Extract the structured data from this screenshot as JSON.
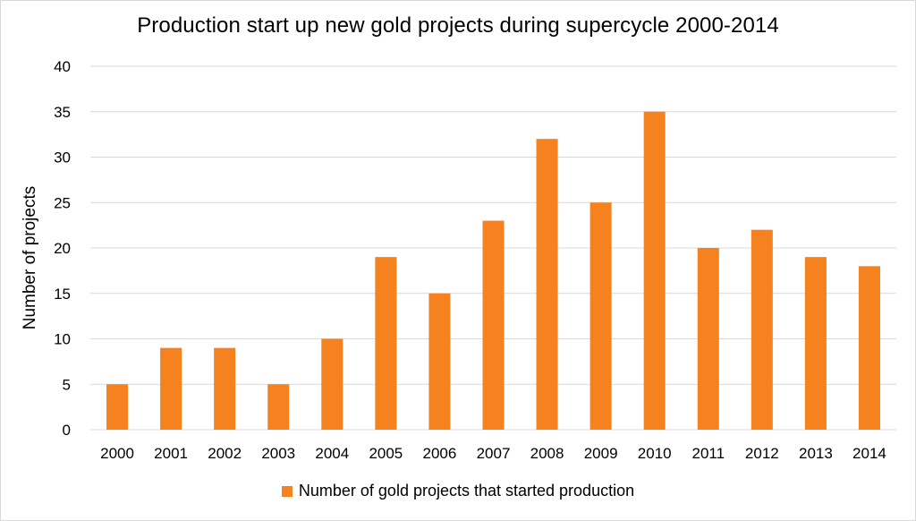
{
  "chart_data": {
    "type": "bar",
    "title": "Production start up new gold projects during supercycle 2000-2014",
    "xlabel": "",
    "ylabel": "Number of projects",
    "categories": [
      "2000",
      "2001",
      "2002",
      "2003",
      "2004",
      "2005",
      "2006",
      "2007",
      "2008",
      "2009",
      "2010",
      "2011",
      "2012",
      "2013",
      "2014"
    ],
    "series": [
      {
        "name": "Number of gold projects that started production",
        "values": [
          5,
          9,
          9,
          5,
          10,
          19,
          15,
          23,
          32,
          25,
          35,
          20,
          22,
          19,
          18
        ],
        "color": "#f5821f"
      }
    ],
    "ylim": [
      0,
      40
    ],
    "yticks": [
      0,
      5,
      10,
      15,
      20,
      25,
      30,
      35,
      40
    ],
    "grid": true,
    "gridColor": "#d9d9d9",
    "legend": "bottom"
  }
}
